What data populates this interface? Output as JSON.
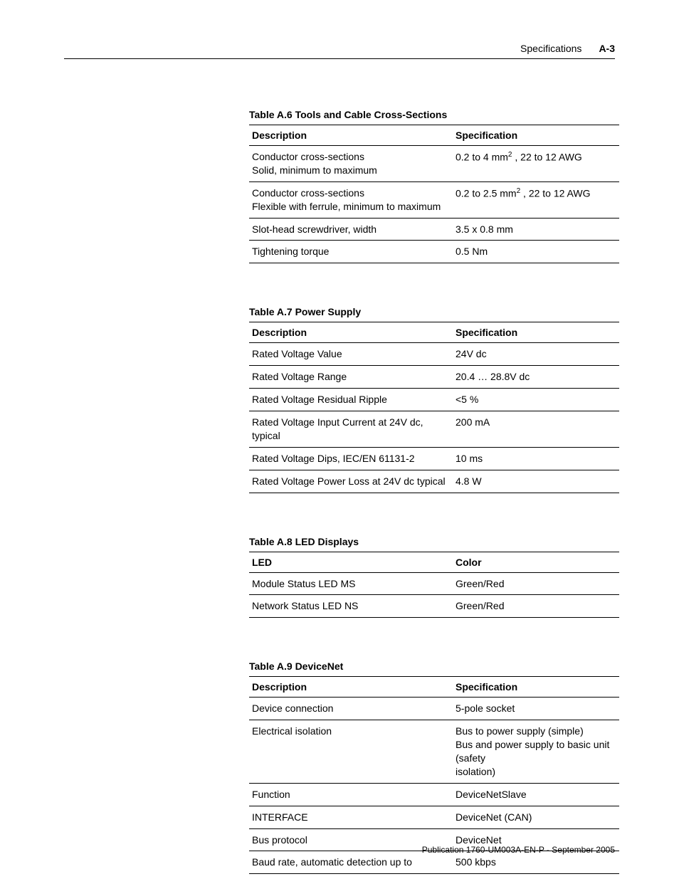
{
  "header": {
    "section": "Specifications",
    "page": "A-3"
  },
  "tables": {
    "t6": {
      "caption": "Table A.6 Tools and Cable Cross-Sections",
      "cols": [
        "Description",
        "Specification"
      ],
      "rows": [
        {
          "d_l1": "Conductor cross-sections",
          "d_l2": "Solid, minimum to maximum",
          "s_pre": "0.2  to 4 mm",
          "s_sup": "2",
          "s_post": " , 22  to 12 AWG"
        },
        {
          "d_l1": "Conductor cross-sections",
          "d_l2": "Flexible with ferrule, minimum to maximum",
          "s_pre": "0.2  to 2.5 mm",
          "s_sup": "2",
          "s_post": " , 22  to 12 AWG"
        },
        {
          "d": "Slot-head screwdriver, width",
          "s": "3.5 x 0.8 mm"
        },
        {
          "d": "Tightening torque",
          "s": "0.5 Nm"
        }
      ]
    },
    "t7": {
      "caption": "Table A.7 Power Supply",
      "cols": [
        "Description",
        "Specification"
      ],
      "rows": [
        {
          "d": "Rated Voltage Value",
          "s": "24V dc"
        },
        {
          "d": "Rated Voltage Range",
          "s": "20.4 … 28.8V dc"
        },
        {
          "d": "Rated Voltage Residual Ripple",
          "s": "<5 %"
        },
        {
          "d_l1": "Rated Voltage Input Current at 24V dc,",
          "d_l2": "typical",
          "s": "200 mA"
        },
        {
          "d": "Rated Voltage Dips, IEC/EN 61131-2",
          "s": "10 ms"
        },
        {
          "d": "Rated Voltage Power Loss at 24V dc typical",
          "s": "4.8 W"
        }
      ]
    },
    "t8": {
      "caption": "Table A.8 LED Displays",
      "cols": [
        "LED",
        "Color"
      ],
      "rows": [
        {
          "d": "Module Status LED MS",
          "s": "Green/Red"
        },
        {
          "d": "Network Status LED NS",
          "s": "Green/Red"
        }
      ]
    },
    "t9": {
      "caption": "Table A.9 DeviceNet",
      "cols": [
        "Description",
        "Specification"
      ],
      "rows": [
        {
          "d": "Device connection",
          "s": "5-pole socket"
        },
        {
          "d": "Electrical isolation",
          "s_l1": "Bus to power supply (simple)",
          "s_l2": "Bus and power supply to basic unit (safety",
          "s_l3": "isolation)"
        },
        {
          "d": "Function",
          "s": "DeviceNetSlave"
        },
        {
          "d": "INTERFACE",
          "s": "DeviceNet (CAN)"
        },
        {
          "d": "Bus protocol",
          "s": "DeviceNet"
        },
        {
          "d": "Baud rate, automatic detection up to",
          "s": "500 kbps"
        }
      ]
    }
  },
  "footer": "Publication 1760-UM003A-EN-P - September 2005",
  "layout": {
    "col1_width": "55%",
    "col2_width": "45%"
  }
}
